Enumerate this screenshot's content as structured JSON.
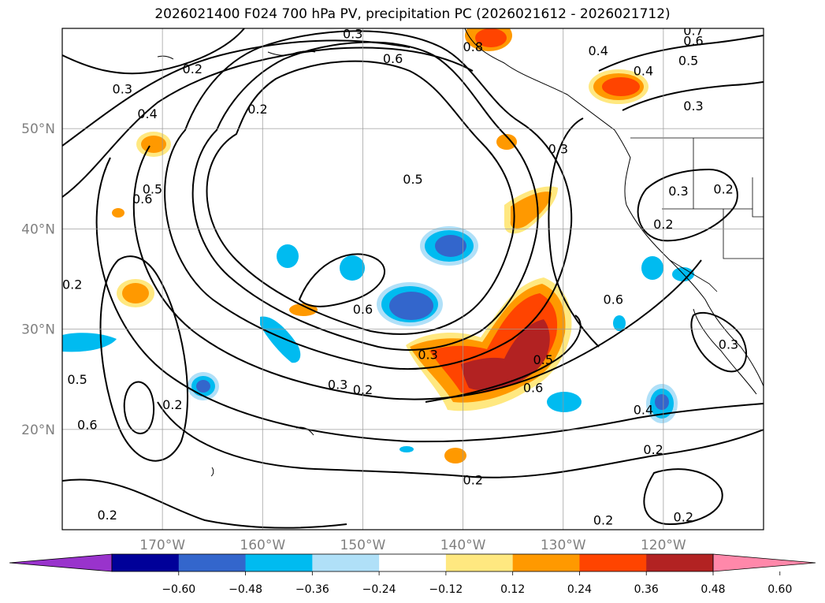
{
  "title": "2026021400 F024 700 hPa PV, precipitation PC (2026021612 - 2026021712)",
  "map": {
    "projection": "equirectangular",
    "lon_range": [
      -180,
      -110
    ],
    "lat_range": [
      10,
      60
    ],
    "gridlines": true,
    "lon_ticks": [
      {
        "lon": -170,
        "label": "170°W"
      },
      {
        "lon": -160,
        "label": "160°W"
      },
      {
        "lon": -150,
        "label": "150°W"
      },
      {
        "lon": -140,
        "label": "140°W"
      },
      {
        "lon": -130,
        "label": "130°W"
      },
      {
        "lon": -120,
        "label": "120°W"
      }
    ],
    "lat_ticks": [
      {
        "lat": 50,
        "label": "50°N"
      },
      {
        "lat": 40,
        "label": "40°N"
      },
      {
        "lat": 30,
        "label": "30°N"
      },
      {
        "lat": 20,
        "label": "20°N"
      }
    ],
    "tick_label_color": "#808080",
    "contour_labels": [
      {
        "text": "0.2",
        "lon": -175.5,
        "lat": 11.5
      },
      {
        "text": "0.2",
        "lon": -150.0,
        "lat": 24.0
      },
      {
        "text": "0.2",
        "lon": -160.5,
        "lat": 52.0
      },
      {
        "text": "0.2",
        "lon": -169.0,
        "lat": 22.5
      },
      {
        "text": "0.2",
        "lon": -179.0,
        "lat": 34.5
      },
      {
        "text": "0.2",
        "lon": -139.0,
        "lat": 15.0
      },
      {
        "text": "0.2",
        "lon": -126.0,
        "lat": 11.0
      },
      {
        "text": "0.2",
        "lon": -118.0,
        "lat": 11.3
      },
      {
        "text": "0.2",
        "lon": -121.0,
        "lat": 18.0
      },
      {
        "text": "0.2",
        "lon": -120.0,
        "lat": 40.5
      },
      {
        "text": "0.2",
        "lon": -167.0,
        "lat": 56.0
      },
      {
        "text": "0.2",
        "lon": -114.0,
        "lat": 44.0
      },
      {
        "text": "0.3",
        "lon": -152.5,
        "lat": 24.5
      },
      {
        "text": "0.3",
        "lon": -130.5,
        "lat": 48.0
      },
      {
        "text": "0.3",
        "lon": -143.5,
        "lat": 27.5
      },
      {
        "text": "0.3",
        "lon": -174.0,
        "lat": 54.0
      },
      {
        "text": "0.3",
        "lon": -117.0,
        "lat": 52.3
      },
      {
        "text": "0.3",
        "lon": -118.5,
        "lat": 43.8
      },
      {
        "text": "0.3",
        "lon": -113.5,
        "lat": 28.5
      },
      {
        "text": "0.4",
        "lon": -171.5,
        "lat": 51.5
      },
      {
        "text": "0.4",
        "lon": -126.5,
        "lat": 57.8
      },
      {
        "text": "0.4",
        "lon": -122.0,
        "lat": 22.0
      },
      {
        "text": "0.4",
        "lon": -122.0,
        "lat": 55.8
      },
      {
        "text": "0.5",
        "lon": -178.5,
        "lat": 25.0
      },
      {
        "text": "0.5",
        "lon": -145.0,
        "lat": 45.0
      },
      {
        "text": "0.5",
        "lon": -132.0,
        "lat": 27.0
      },
      {
        "text": "0.5",
        "lon": -171.0,
        "lat": 44.0
      },
      {
        "text": "0.5",
        "lon": -117.5,
        "lat": 56.8
      },
      {
        "text": "0.6",
        "lon": -177.5,
        "lat": 20.5
      },
      {
        "text": "0.6",
        "lon": -172.0,
        "lat": 43.0
      },
      {
        "text": "0.6",
        "lon": -147.0,
        "lat": 57.0
      },
      {
        "text": "0.6",
        "lon": -150.0,
        "lat": 32.0
      },
      {
        "text": "0.6",
        "lon": -133.0,
        "lat": 24.2
      },
      {
        "text": "0.6",
        "lon": -125.0,
        "lat": 33.0
      },
      {
        "text": "0.6",
        "lon": -117.0,
        "lat": 58.8
      },
      {
        "text": "0.7",
        "lon": -117.0,
        "lat": 59.8
      },
      {
        "text": "0.8",
        "lon": -139.0,
        "lat": 58.2
      },
      {
        "text": "0.3",
        "lon": -151.0,
        "lat": 59.5
      }
    ]
  },
  "colorbar": {
    "colors": [
      "#9933cc",
      "#000099",
      "#3366cc",
      "#00bbf0",
      "#b0e0f8",
      "#ffffff",
      "#ffe880",
      "#ff9900",
      "#ff4400",
      "#b22222",
      "#ff88aa"
    ],
    "tick_labels": [
      "−0.60",
      "−0.48",
      "−0.36",
      "−0.24",
      "−0.12",
      "0.12",
      "0.24",
      "0.36",
      "0.48",
      "0.60"
    ],
    "extend": "both"
  }
}
